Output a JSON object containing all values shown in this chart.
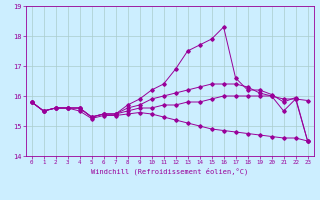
{
  "title": "",
  "xlabel": "Windchill (Refroidissement éolien,°C)",
  "ylabel": "",
  "xlim": [
    -0.5,
    23.5
  ],
  "ylim": [
    14,
    19
  ],
  "yticks": [
    14,
    15,
    16,
    17,
    18,
    19
  ],
  "xticks": [
    0,
    1,
    2,
    3,
    4,
    5,
    6,
    7,
    8,
    9,
    10,
    11,
    12,
    13,
    14,
    15,
    16,
    17,
    18,
    19,
    20,
    21,
    22,
    23
  ],
  "bg_color": "#cceeff",
  "line_color": "#990099",
  "grid_color": "#aacccc",
  "series": {
    "line1": {
      "x": [
        0,
        1,
        2,
        3,
        4,
        5,
        6,
        7,
        8,
        9,
        10,
        11,
        12,
        13,
        14,
        15,
        16,
        17,
        18,
        19,
        20,
        21,
        22,
        23
      ],
      "y": [
        15.8,
        15.5,
        15.6,
        15.6,
        15.6,
        15.3,
        15.4,
        15.4,
        15.6,
        15.7,
        15.9,
        16.0,
        16.1,
        16.2,
        16.3,
        16.4,
        16.4,
        16.4,
        16.3,
        16.1,
        16.0,
        15.9,
        15.9,
        15.85
      ]
    },
    "line2": {
      "x": [
        0,
        1,
        2,
        3,
        4,
        5,
        6,
        7,
        8,
        9,
        10,
        11,
        12,
        13,
        14,
        15,
        16,
        17,
        18,
        19,
        20,
        21,
        22,
        23
      ],
      "y": [
        15.8,
        15.5,
        15.6,
        15.6,
        15.6,
        15.3,
        15.4,
        15.4,
        15.7,
        15.9,
        16.2,
        16.4,
        16.9,
        17.5,
        17.7,
        17.9,
        18.3,
        16.6,
        16.2,
        16.2,
        16.05,
        15.8,
        15.95,
        14.5
      ]
    },
    "line3": {
      "x": [
        0,
        1,
        2,
        3,
        4,
        5,
        6,
        7,
        8,
        9,
        10,
        11,
        12,
        13,
        14,
        15,
        16,
        17,
        18,
        19,
        20,
        21,
        22,
        23
      ],
      "y": [
        15.8,
        15.5,
        15.6,
        15.6,
        15.6,
        15.3,
        15.4,
        15.4,
        15.5,
        15.6,
        15.6,
        15.7,
        15.7,
        15.8,
        15.8,
        15.9,
        16.0,
        16.0,
        16.0,
        16.0,
        16.0,
        15.5,
        15.9,
        14.5
      ]
    },
    "line4": {
      "x": [
        0,
        1,
        2,
        3,
        4,
        5,
        6,
        7,
        8,
        9,
        10,
        11,
        12,
        13,
        14,
        15,
        16,
        17,
        18,
        19,
        20,
        21,
        22,
        23
      ],
      "y": [
        15.8,
        15.5,
        15.6,
        15.6,
        15.5,
        15.25,
        15.35,
        15.35,
        15.4,
        15.45,
        15.4,
        15.3,
        15.2,
        15.1,
        15.0,
        14.9,
        14.85,
        14.8,
        14.75,
        14.7,
        14.65,
        14.6,
        14.6,
        14.5
      ]
    }
  }
}
